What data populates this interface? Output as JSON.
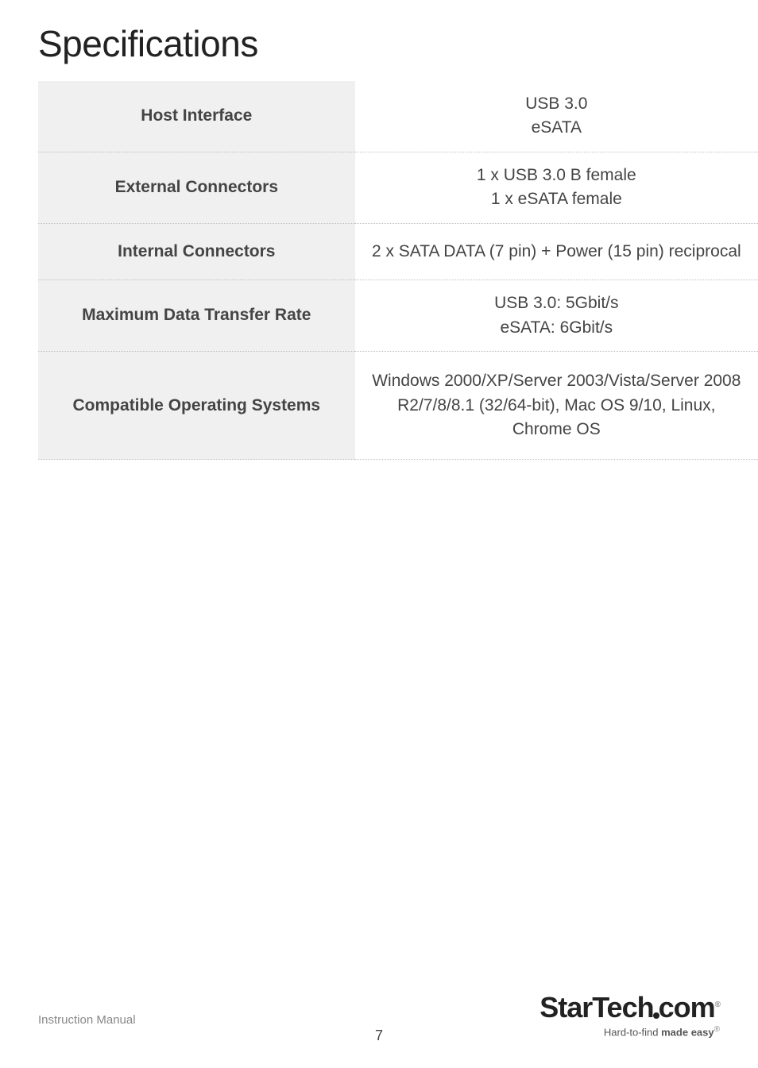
{
  "title": "Specifications",
  "rows": [
    {
      "label": "Host Interface",
      "value": "USB 3.0<br>eSATA"
    },
    {
      "label": "External Connectors",
      "value": "1 x USB 3.0 B female<br>1 x eSATA female"
    },
    {
      "label": "Internal Connectors",
      "value": "2 x SATA DATA (7 pin) + Power (15 pin) reciprocal"
    },
    {
      "label": "Maximum Data Transfer Rate",
      "value": "USB 3.0: 5Gbit/s<br>eSATA: 6Gbit/s"
    },
    {
      "label": "Compatible Operating Systems",
      "value": "Windows 2000/XP/Server 2003/Vista/Server 2008 R2/7/8/8.1 (32/64-bit), Mac OS 9/10, Linux, Chrome OS"
    }
  ],
  "footer": {
    "left": "Instruction Manual",
    "page": "7",
    "logo": {
      "name": "StarTech",
      "suffix": "com",
      "tagline_prefix": "Hard-to-find ",
      "tagline_bold": "made easy"
    }
  },
  "row_paddings": [
    "14px 18px",
    "14px 18px",
    "20px 18px",
    "14px 18px",
    "22px 18px"
  ],
  "value_paddings": [
    "14px 20px",
    "14px 20px",
    "20px 20px",
    "14px 20px",
    "22px 20px"
  ]
}
